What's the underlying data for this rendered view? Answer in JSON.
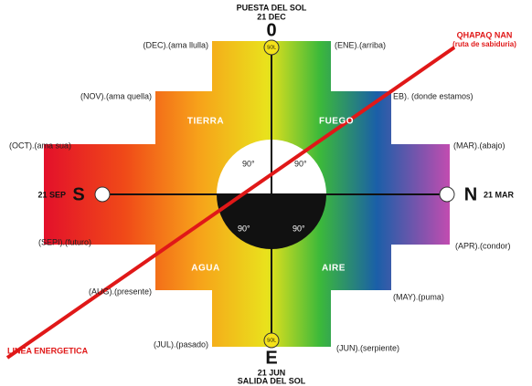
{
  "top": {
    "line1": "PUESTA DEL SOL",
    "line2": "21 DEC",
    "mark": "0"
  },
  "bottom": {
    "mark": "E",
    "line1": "21 JUN",
    "line2": "SALIDA DEL SOL"
  },
  "west": {
    "date": "21 SEP",
    "mark": "S"
  },
  "east": {
    "mark": "N",
    "date": "21 MAR"
  },
  "sol_top": "SOL",
  "sol_bottom": "SOL",
  "qhapaq": {
    "line1": "QHAPAQ NAN",
    "line2": "(ruta de sabiduria)"
  },
  "energy_line": "LINEA ENERGETICA",
  "quadrants": {
    "tierra": "TIERRA",
    "fuego": "FUEGO",
    "agua": "AGUA",
    "aire": "AIRE"
  },
  "angles": [
    "90°",
    "90°",
    "90°",
    "90°"
  ],
  "months": {
    "dec": "(DEC).(ama llulla)",
    "ene": "(ENE).(arriba)",
    "nov": "(NOV).(ama quella)",
    "feb": "EB). (donde estamos)",
    "oct": "(OCT).(ama sua)",
    "mar": "(MAR).(abajo)",
    "sep": "(SEPI).(futuro)",
    "apr": "(APR).(condor)",
    "aug": "(AUG).(presente)",
    "may": "(MAY).(puma)",
    "jul": "(JUL).(pasado)",
    "jun": "(JUN).(serpiente)"
  }
}
